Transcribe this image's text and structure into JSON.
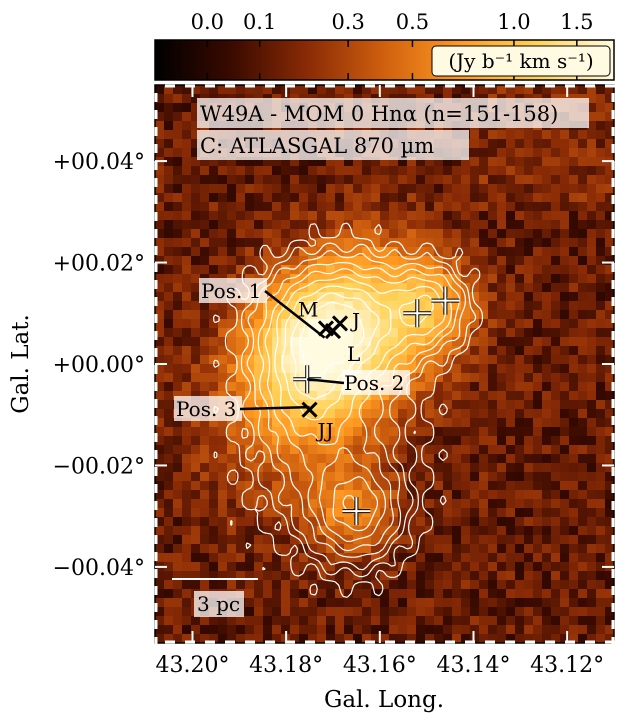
{
  "chart_data": {
    "type": "heatmap",
    "colorbar": {
      "ticks": [
        {
          "label": "0.0",
          "value": 0.0
        },
        {
          "label": "0.1",
          "value": 0.1
        },
        {
          "label": "0.3",
          "value": 0.3
        },
        {
          "label": "0.5",
          "value": 0.5
        },
        {
          "label": "1.0",
          "value": 1.0
        },
        {
          "label": "1.5",
          "value": 1.5
        }
      ],
      "unit_label": "(Jy b⁻¹ km s⁻¹)",
      "range": [
        -0.1,
        1.9
      ],
      "colors": [
        "#000000",
        "#3a0a00",
        "#8a2b06",
        "#d0600f",
        "#ff9a22",
        "#ffd35a",
        "#fffbe0"
      ]
    },
    "annotation": {
      "line1": "W49A - MOM 0 Hnα (n=151-158)",
      "line2": "C: ATLASGAL 870 µm",
      "scalebar": "3 pc"
    },
    "xlabel": "Gal. Long.",
    "ylabel": "Gal. Lat.",
    "xlim": [
      43.208,
      43.11
    ],
    "ylim": [
      -0.055,
      0.055
    ],
    "xticks": [
      "43.20°",
      "43.18°",
      "43.16°",
      "43.14°",
      "43.12°"
    ],
    "xtick_values": [
      43.2,
      43.18,
      43.16,
      43.14,
      43.12
    ],
    "yticks": [
      "+00.04°",
      "+00.02°",
      "+00.00°",
      "−00.02°",
      "−00.04°"
    ],
    "ytick_values": [
      0.04,
      0.02,
      0.0,
      -0.02,
      -0.04
    ],
    "plus_markers": [
      {
        "l": 43.1755,
        "b": -0.003
      },
      {
        "l": 43.152,
        "b": 0.01
      },
      {
        "l": 43.146,
        "b": 0.0125
      },
      {
        "l": 43.165,
        "b": -0.029
      }
    ],
    "x_markers": [
      {
        "label": "M",
        "l": 43.1715,
        "b": 0.007
      },
      {
        "label": "J",
        "l": 43.1685,
        "b": 0.008
      },
      {
        "label": "L",
        "l": 43.17,
        "b": 0.0065
      },
      {
        "label": "JJ",
        "l": 43.175,
        "b": -0.009
      }
    ],
    "positions": [
      {
        "label": "Pos. 1",
        "l": 43.1718,
        "b": 0.0052
      },
      {
        "label": "Pos. 2",
        "l": 43.1755,
        "b": -0.003
      },
      {
        "label": "Pos. 3",
        "l": 43.175,
        "b": -0.0085
      }
    ],
    "emission_peaks": [
      {
        "l": 43.173,
        "b": 0.003,
        "amp": 1.6,
        "sigma": 0.009
      },
      {
        "l": 43.16,
        "b": 0.01,
        "amp": 0.7,
        "sigma": 0.01
      },
      {
        "l": 43.149,
        "b": 0.011,
        "amp": 0.5,
        "sigma": 0.006
      },
      {
        "l": 43.166,
        "b": -0.029,
        "amp": 0.45,
        "sigma": 0.006
      },
      {
        "l": 43.18,
        "b": -0.01,
        "amp": 0.35,
        "sigma": 0.012
      }
    ],
    "dust_clumps": [
      {
        "l": 43.169,
        "b": 0.008,
        "amp": 1.0,
        "sl": 0.009,
        "sb": 0.007
      },
      {
        "l": 43.15,
        "b": 0.011,
        "amp": 0.55,
        "sl": 0.005,
        "sb": 0.005
      },
      {
        "l": 43.1755,
        "b": -0.004,
        "amp": 0.45,
        "sl": 0.006,
        "sb": 0.007
      },
      {
        "l": 43.165,
        "b": -0.029,
        "amp": 0.6,
        "sl": 0.006,
        "sb": 0.006
      },
      {
        "l": 43.17,
        "b": -0.015,
        "amp": 0.35,
        "sl": 0.01,
        "sb": 0.012
      }
    ],
    "contour_levels": [
      0.05,
      0.1,
      0.16,
      0.24,
      0.34,
      0.46,
      0.6,
      0.75,
      0.9
    ],
    "grid": false
  }
}
